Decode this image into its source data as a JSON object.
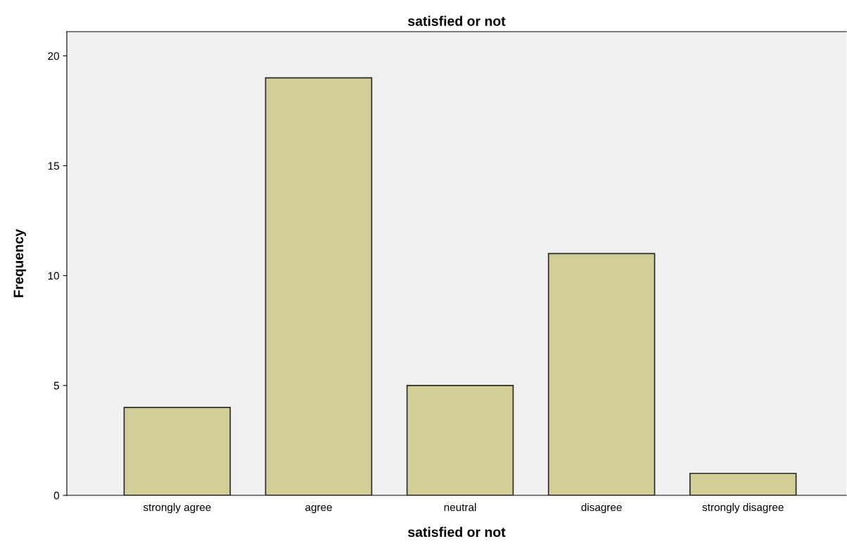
{
  "chart_data": {
    "type": "bar",
    "title": "satisfied or not",
    "xlabel": "satisfied or not",
    "ylabel": "Frequency",
    "categories": [
      "strongly agree",
      "agree",
      "neutral",
      "disagree",
      "strongly disagree"
    ],
    "values": [
      4,
      19,
      5,
      11,
      1
    ],
    "color": "#d3ce97",
    "ylim": [
      0,
      21.1
    ],
    "yticks": [
      0,
      5,
      10,
      15,
      20
    ],
    "grid": false,
    "legend": false
  }
}
